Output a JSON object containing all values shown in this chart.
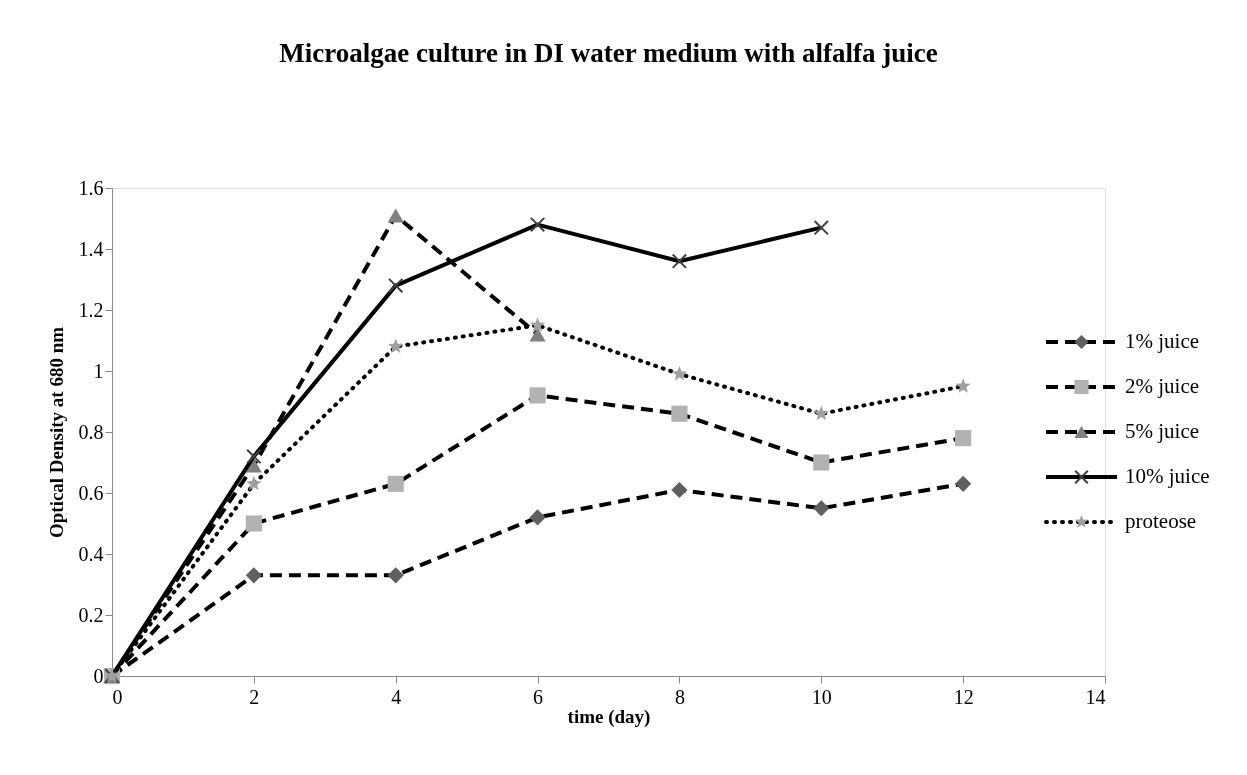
{
  "chart_data": {
    "type": "line",
    "title": "Microalgae culture in DI water medium with alfalfa juice",
    "xlabel": "time (day)",
    "ylabel": "Optical Density at 680 nm",
    "x": [
      0,
      2,
      4,
      6,
      8,
      10,
      12
    ],
    "series": [
      {
        "name": "1% juice",
        "color": "#5f5f5f",
        "marker": "diamond",
        "line_style": "dashed",
        "values": [
          0,
          0.33,
          0.33,
          0.52,
          0.61,
          0.55,
          0.63
        ]
      },
      {
        "name": "2% juice",
        "color": "#b2b2b2",
        "marker": "square",
        "line_style": "dashed",
        "values": [
          0,
          0.5,
          0.63,
          0.92,
          0.86,
          0.7,
          0.78
        ]
      },
      {
        "name": "5% juice",
        "color": "#808080",
        "marker": "triangle",
        "line_style": "dashed",
        "values": [
          0,
          0.69,
          1.51,
          1.12,
          null,
          null,
          null
        ]
      },
      {
        "name": "10% juice",
        "color": "#404040",
        "marker": "cross",
        "line_style": "solid",
        "values": [
          0,
          0.72,
          1.28,
          1.48,
          1.36,
          1.47,
          null
        ]
      },
      {
        "name": "proteose",
        "color": "#a0a0a0",
        "marker": "star",
        "line_style": "dotted",
        "values": [
          0,
          0.63,
          1.08,
          1.15,
          0.99,
          0.86,
          0.95
        ]
      }
    ],
    "xlim": [
      0,
      14
    ],
    "xticks": [
      0,
      2,
      4,
      6,
      8,
      10,
      12,
      14
    ],
    "ylim": [
      0,
      1.6
    ],
    "yticks": [
      0,
      0.2,
      0.4,
      0.6,
      0.8,
      1,
      1.2,
      1.4,
      1.6
    ],
    "grid": false,
    "legend": "right"
  }
}
